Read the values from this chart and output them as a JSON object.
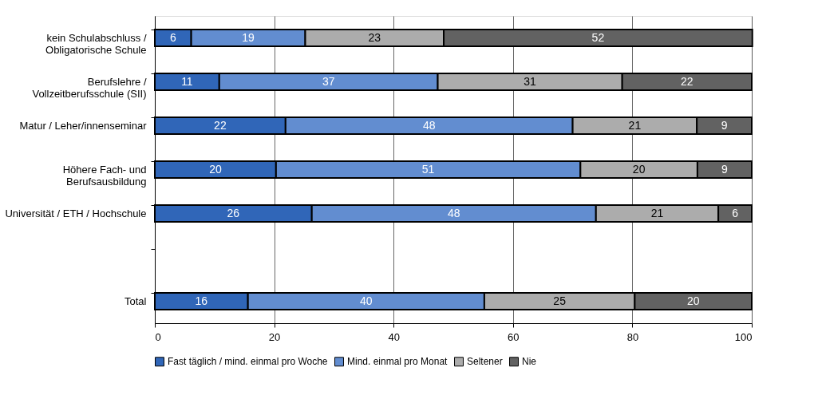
{
  "chart_data": {
    "type": "bar",
    "orientation": "horizontal",
    "stacked": true,
    "categories": [
      "kein Schulabschluss  /\nObligatorische Schule",
      "Berufslehre /\nVollzeitberufsschule (SII)",
      "Matur /  Leher/innenseminar",
      "Höhere Fach- und\nBerufsausbildung ",
      "Universität / ETH / Hochschule",
      null,
      "Total"
    ],
    "series": [
      {
        "name": "Fast täglich / mind. einmal pro Woche",
        "color": "#3066b8",
        "values": [
          6.1,
          10.8,
          21.9,
          20.3,
          26.3,
          null,
          15.6
        ],
        "value_labels": [
          "6",
          "11",
          "22",
          "20",
          "26",
          null,
          "16"
        ]
      },
      {
        "name": "Mind. einmal pro Monat",
        "color": "#628dd0",
        "values": [
          19.1,
          36.6,
          48.1,
          51.0,
          47.6,
          null,
          39.6
        ],
        "value_labels": [
          "19",
          "37",
          "48",
          "51",
          "48",
          null,
          "40"
        ]
      },
      {
        "name": "Seltener",
        "color": "#acacac",
        "values": [
          23.2,
          30.9,
          20.8,
          19.6,
          20.5,
          null,
          25.2
        ],
        "value_labels": [
          "23",
          "31",
          "21",
          "20",
          "21",
          null,
          "25"
        ]
      },
      {
        "name": "Nie",
        "color": "#626262",
        "values": [
          51.7,
          21.7,
          9.2,
          9.1,
          5.6,
          null,
          19.6
        ],
        "value_labels": [
          "52",
          "22",
          "9",
          "9",
          "6",
          null,
          "20"
        ]
      }
    ],
    "xlim": [
      0,
      100
    ],
    "xticks": [
      0,
      20,
      40,
      60,
      80,
      100
    ],
    "grid": "x",
    "legend": "bottom"
  }
}
